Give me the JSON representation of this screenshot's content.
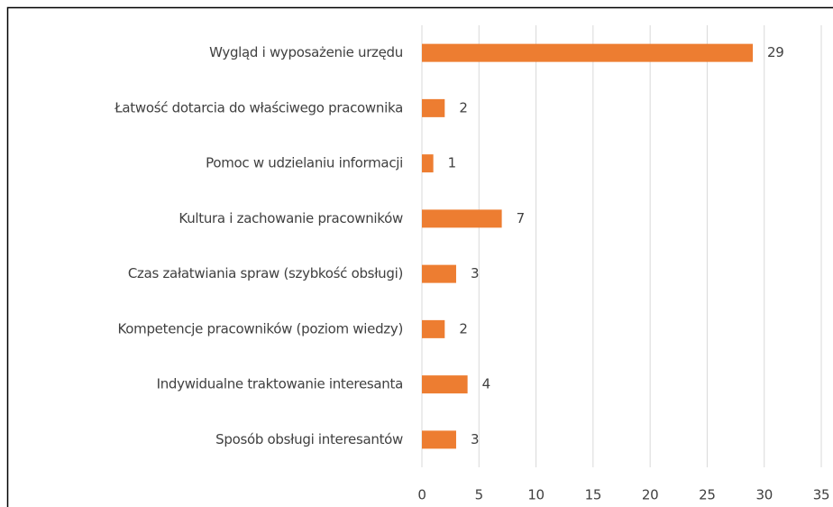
{
  "chart_data": {
    "type": "bar",
    "orientation": "horizontal",
    "categories": [
      "Wygląd i wyposażenie urzędu",
      "Łatwość dotarcia do właściwego pracownika",
      "Pomoc w udzielaniu informacji",
      "Kultura i zachowanie pracowników",
      "Czas załatwiania spraw (szybkość obsługi)",
      "Kompetencje pracowników (poziom wiedzy)",
      "Indywidualne traktowanie interesanta",
      "Sposób obsługi interesantów"
    ],
    "values": [
      29,
      2,
      1,
      7,
      3,
      2,
      4,
      3
    ],
    "color": "#ed7d31",
    "xlim": [
      0,
      35
    ],
    "xticks": [
      0,
      5,
      10,
      15,
      20,
      25,
      30,
      35
    ],
    "grid": true
  }
}
